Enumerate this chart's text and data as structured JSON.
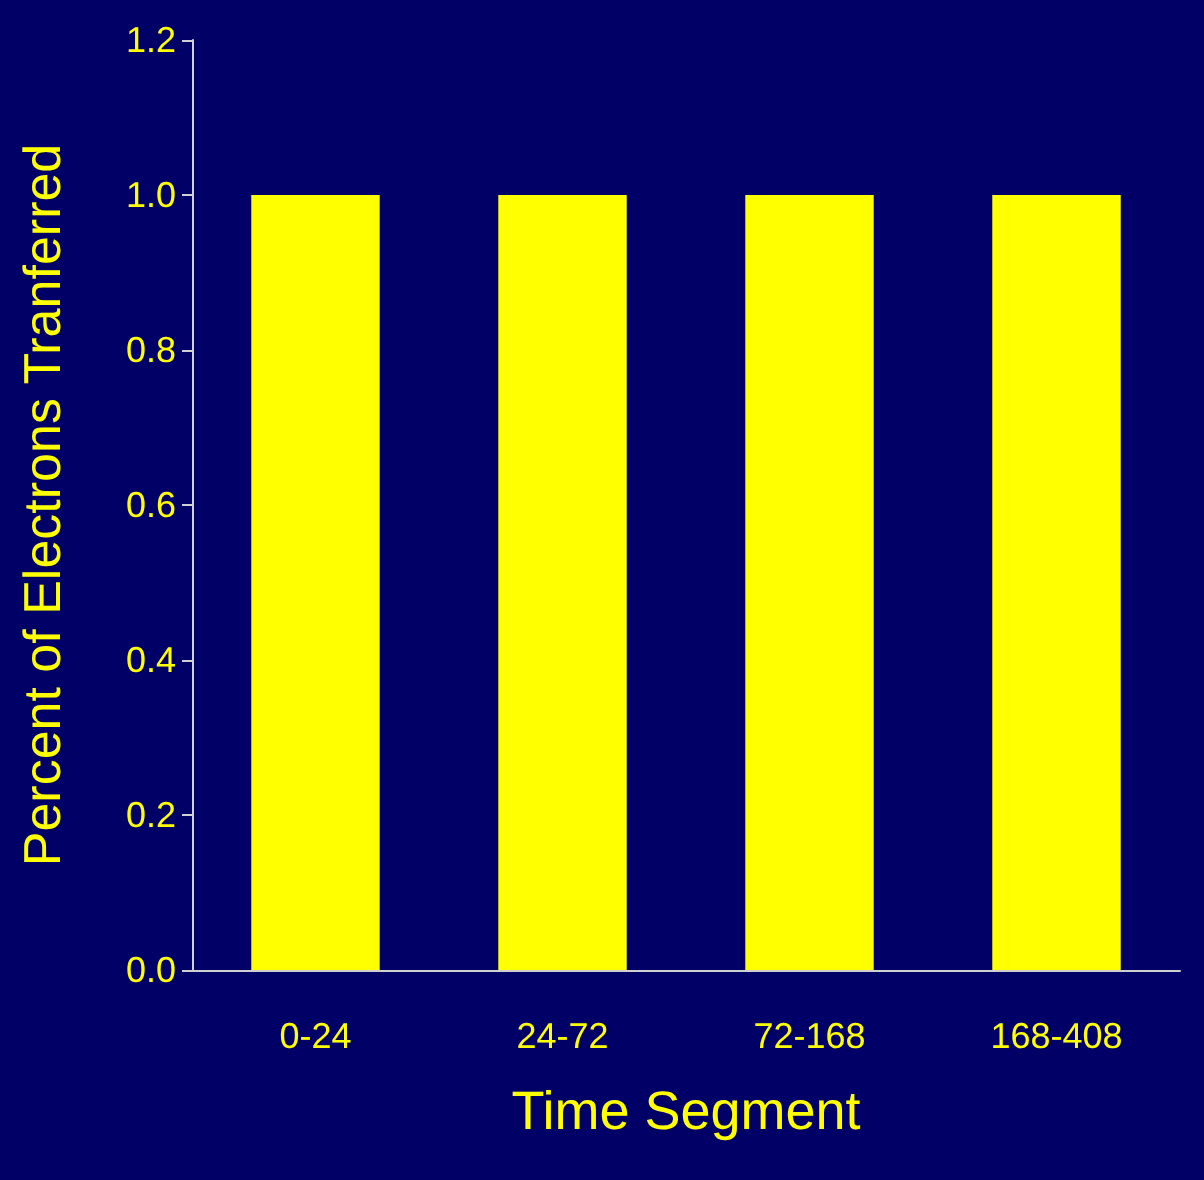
{
  "chart_data": {
    "type": "bar",
    "xlabel": "Time Segment",
    "ylabel": "Percent of Electrons Tranferred",
    "categories": [
      "0-24",
      "24-72",
      "72-168",
      "168-408"
    ],
    "values": [
      1.0,
      1.0,
      1.0,
      1.0
    ],
    "color": "#ffff00",
    "ylim": [
      0,
      1.2
    ],
    "yticks": [
      {
        "value": 0,
        "label": "0.0"
      },
      {
        "value": 0.2,
        "label": "0.2"
      },
      {
        "value": 0.4,
        "label": "0.4"
      },
      {
        "value": 0.6,
        "label": "0.6"
      },
      {
        "value": 0.8,
        "label": "0.8"
      },
      {
        "value": 1.0,
        "label": "1.0"
      },
      {
        "value": 1.2,
        "label": "1.2"
      }
    ],
    "grid": false
  }
}
